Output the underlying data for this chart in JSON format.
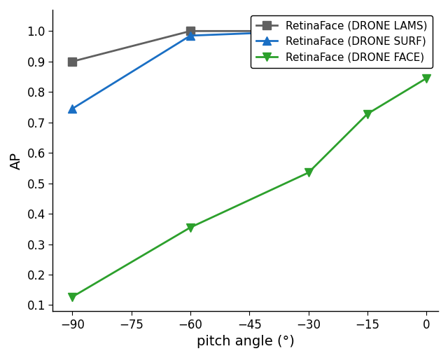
{
  "x_values": [
    -90,
    -60,
    -30,
    -15,
    0
  ],
  "series": [
    {
      "label": "RetinaFace (DRONE LAMS)",
      "y": [
        0.9,
        1.0,
        1.0,
        1.0,
        1.0
      ],
      "color": "#606060",
      "marker": "s",
      "linewidth": 2.0,
      "markersize": 8
    },
    {
      "label": "RetinaFace (DRONE SURF)",
      "y": [
        0.745,
        0.985,
        1.0,
        1.0,
        1.0
      ],
      "color": "#1a6fc4",
      "marker": "^",
      "linewidth": 2.0,
      "markersize": 8
    },
    {
      "label": "RetinaFace (DRONE FACE)",
      "y": [
        0.127,
        0.355,
        0.535,
        0.728,
        0.845
      ],
      "color": "#2ca02c",
      "marker": "v",
      "linewidth": 2.0,
      "markersize": 8
    }
  ],
  "xlabel": "pitch angle (°)",
  "ylabel": "AP",
  "xlim": [
    -95,
    3
  ],
  "ylim": [
    0.08,
    1.07
  ],
  "xticks": [
    -90,
    -75,
    -60,
    -45,
    -30,
    -15,
    0
  ],
  "yticks": [
    0.1,
    0.2,
    0.3,
    0.4,
    0.5,
    0.6,
    0.7,
    0.8,
    0.9,
    1.0
  ],
  "legend_loc": "upper right",
  "background_color": "#ffffff",
  "label_fontsize": 14,
  "tick_fontsize": 12,
  "legend_fontsize": 11
}
